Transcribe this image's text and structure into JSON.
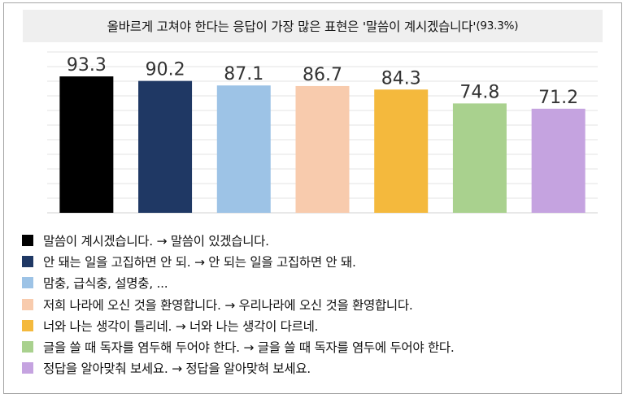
{
  "title": {
    "text": "올바르게 고쳐야 한다는 응답이 가장 많은 표현은 '말씀이 계시겠습니다'",
    "percent": "(93.3%)"
  },
  "chart_data": {
    "type": "bar",
    "values": [
      93.3,
      90.2,
      87.1,
      86.7,
      84.3,
      74.8,
      71.2
    ],
    "value_labels": [
      "93.3",
      "90.2",
      "87.1",
      "86.7",
      "84.3",
      "74.8",
      "71.2"
    ],
    "colors": [
      "#000000",
      "#1f3864",
      "#9dc3e6",
      "#f8cbad",
      "#f4b93d",
      "#a9d18e",
      "#c5a3e0"
    ],
    "grid": true,
    "categories": [
      "말씀이 계시겠습니다. → 말씀이 있겠습니다.",
      "안 돼는 일을 고집하면 안 되. → 안 되는 일을 고집하면 안 돼.",
      "맘충, 급식충, 설명충, ...",
      "저희 나라에 오신 것을 환영합니다. → 우리나라에 오신 것을 환영합니다.",
      "너와 나는 생각이 틀리네. → 너와 나는 생각이 다르네.",
      "글을 쓸 때 독자를 염두해 두어야 한다. → 글을 쓸 때 독자를 염두에 두어야 한다.",
      "정답을 알아맞춰 보세요. → 정답을 알아맞혀 보세요."
    ]
  }
}
